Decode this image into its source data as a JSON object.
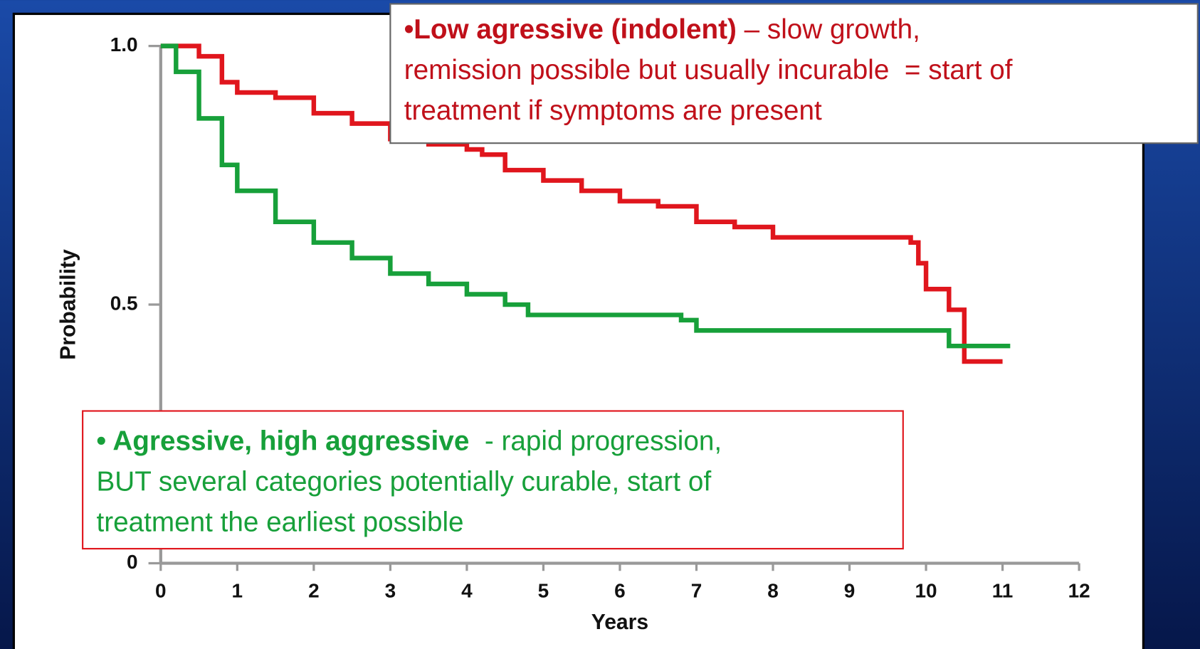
{
  "chart_data": {
    "type": "line",
    "step": true,
    "xlabel": "Years",
    "ylabel": "Probability",
    "xlim": [
      0,
      12
    ],
    "ylim": [
      0,
      1
    ],
    "xticks": [
      0,
      1,
      2,
      3,
      4,
      5,
      6,
      7,
      8,
      9,
      10,
      11,
      12
    ],
    "yticks": [
      0,
      0.5,
      {
        "value": 1,
        "label": "1.0"
      }
    ],
    "series": [
      {
        "color": "#e0161d",
        "x": [
          0,
          0.5,
          0.8,
          1,
          1.5,
          2,
          2.5,
          3,
          3.5,
          4,
          4.2,
          4.5,
          5,
          5.5,
          6,
          6.5,
          7,
          7.5,
          8,
          9,
          9.8,
          9.9,
          10,
          10.3,
          10.5,
          11
        ],
        "values": [
          1.0,
          0.98,
          0.93,
          0.91,
          0.9,
          0.87,
          0.85,
          0.82,
          0.81,
          0.8,
          0.79,
          0.76,
          0.74,
          0.72,
          0.7,
          0.69,
          0.66,
          0.65,
          0.63,
          0.63,
          0.62,
          0.58,
          0.53,
          0.49,
          0.39,
          0.39
        ]
      },
      {
        "color": "#17a03a",
        "x": [
          0,
          0.2,
          0.5,
          0.8,
          1,
          1.5,
          2,
          2.5,
          3,
          3.5,
          4,
          4.5,
          4.8,
          5,
          6,
          6.8,
          7,
          8,
          9,
          10,
          10.3,
          11.1
        ],
        "values": [
          1.0,
          0.95,
          0.86,
          0.77,
          0.72,
          0.66,
          0.62,
          0.59,
          0.56,
          0.54,
          0.52,
          0.5,
          0.48,
          0.48,
          0.48,
          0.47,
          0.45,
          0.45,
          0.45,
          0.45,
          0.42,
          0.42
        ]
      }
    ],
    "annotations": [
      {
        "color": "#c0101a",
        "bold": "•Low agressive (indolent)",
        "lines": [
          " – slow growth,",
          "remission possible but usually incurable  = start of",
          "treatment if symptoms are present"
        ]
      },
      {
        "color": "#17a03a",
        "bold": "• Agressive, high aggressive",
        "lines": [
          "  - rapid progression,",
          "BUT several categories potentially curable, start of",
          "treatment the earliest possible"
        ]
      }
    ]
  }
}
